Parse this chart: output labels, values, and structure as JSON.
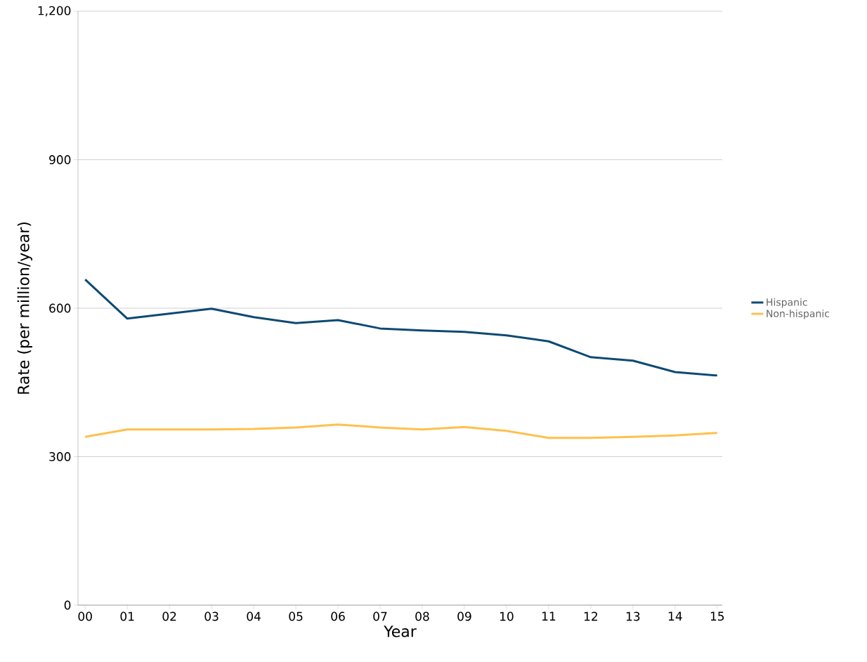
{
  "chart_data": {
    "type": "line",
    "xlabel": "Year",
    "ylabel": "Rate (per million/year)",
    "categories": [
      "00",
      "01",
      "02",
      "03",
      "04",
      "05",
      "06",
      "07",
      "08",
      "09",
      "10",
      "11",
      "12",
      "13",
      "14",
      "15"
    ],
    "series": [
      {
        "name": "Hispanic",
        "color": "#0d4a73",
        "values": [
          658,
          579,
          589,
          599,
          582,
          570,
          576,
          559,
          555,
          552,
          545,
          533,
          501,
          494,
          471,
          464
        ]
      },
      {
        "name": "Non-hispanic",
        "color": "#ffc04d",
        "values": [
          340,
          355,
          355,
          355,
          356,
          359,
          365,
          359,
          355,
          360,
          352,
          338,
          338,
          340,
          343,
          348
        ]
      }
    ],
    "ylim": [
      0,
      1200
    ],
    "yticks": [
      0,
      300,
      600,
      900,
      {
        "value": 1200,
        "label": "1,200"
      }
    ],
    "grid": "y",
    "legend": "right",
    "line_style": "solid"
  }
}
